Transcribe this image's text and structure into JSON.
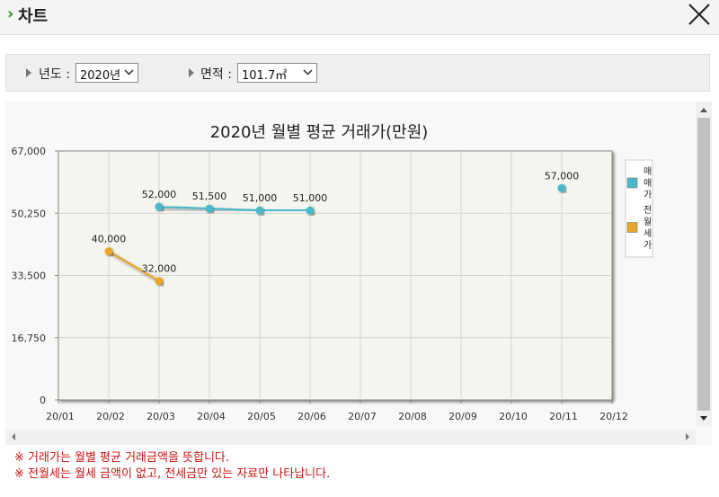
{
  "window": {
    "title": "차트"
  },
  "filters": {
    "year_label": "년도 :",
    "year_value": "2020년",
    "area_label": "면적 :",
    "area_value": "101.7㎡"
  },
  "notes": [
    "※ 거래가는 월별 평균 거래금액을 뜻합니다.",
    "※ 전월세는 월세 금액이 없고, 전세금만 있는 자료만 나타납니다."
  ],
  "colors": {
    "sale": "#4ab8c8",
    "jeonse": "#e8a62a",
    "plot_bg": "#f5f5ef",
    "note": "#cc1111"
  },
  "chart_data": {
    "type": "line",
    "title": "2020년 월별 평균 거래가(만원)",
    "xlabel": "",
    "ylabel": "",
    "categories": [
      "20/01",
      "20/02",
      "20/03",
      "20/04",
      "20/05",
      "20/06",
      "20/07",
      "20/08",
      "20/09",
      "20/10",
      "20/11",
      "20/12"
    ],
    "y_ticks": [
      "0",
      "16,750",
      "33,500",
      "50,250",
      "67,000"
    ],
    "y_tick_values": [
      0,
      16750,
      33500,
      50250,
      67000
    ],
    "ylim": [
      0,
      67000
    ],
    "grid": true,
    "legend_position": "right",
    "series": [
      {
        "name": "매매가",
        "legend_lines": [
          "매",
          "매",
          "가"
        ],
        "values": [
          null,
          null,
          52000,
          51500,
          51000,
          51000,
          null,
          null,
          null,
          null,
          57000,
          null
        ],
        "labels": [
          null,
          null,
          "52,000",
          "51,500",
          "51,000",
          "51,000",
          null,
          null,
          null,
          null,
          "57,000",
          null
        ]
      },
      {
        "name": "전월세가",
        "legend_lines": [
          "전",
          "월",
          "세",
          "가"
        ],
        "values": [
          null,
          40000,
          32000,
          null,
          null,
          null,
          null,
          null,
          null,
          null,
          null,
          null
        ],
        "labels": [
          null,
          "40,000",
          "32,000",
          null,
          null,
          null,
          null,
          null,
          null,
          null,
          null,
          null
        ]
      }
    ]
  }
}
